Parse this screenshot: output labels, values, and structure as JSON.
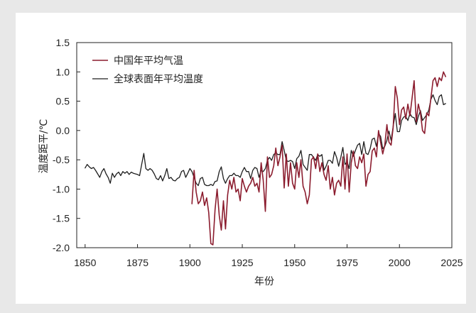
{
  "chart_data": {
    "type": "line",
    "xlabel": "年份",
    "ylabel": "温度距平/℃",
    "xlim": [
      1846,
      2025
    ],
    "ylim": [
      -2.0,
      1.5
    ],
    "x_ticks": [
      "1850",
      "1875",
      "1900",
      "1925",
      "1950",
      "1975",
      "2000",
      "2025"
    ],
    "y_ticks": [
      "1.5",
      "1.0",
      "0.5",
      "0.0",
      "-0.5",
      "-1.0",
      "-1.5",
      "-2.0"
    ],
    "grid": false,
    "legend": "top-left",
    "series": [
      {
        "name": "中国年平均气温",
        "color": "#8b1c2e",
        "x": [
          1901,
          1902,
          1903,
          1904,
          1905,
          1906,
          1907,
          1908,
          1909,
          1910,
          1911,
          1912,
          1913,
          1914,
          1915,
          1916,
          1917,
          1918,
          1919,
          1920,
          1921,
          1922,
          1923,
          1924,
          1925,
          1926,
          1927,
          1928,
          1929,
          1930,
          1931,
          1932,
          1933,
          1934,
          1935,
          1936,
          1937,
          1938,
          1939,
          1940,
          1941,
          1942,
          1943,
          1944,
          1945,
          1946,
          1947,
          1948,
          1949,
          1950,
          1951,
          1952,
          1953,
          1954,
          1955,
          1956,
          1957,
          1958,
          1959,
          1960,
          1961,
          1962,
          1963,
          1964,
          1965,
          1966,
          1967,
          1968,
          1969,
          1970,
          1971,
          1972,
          1973,
          1974,
          1975,
          1976,
          1977,
          1978,
          1979,
          1980,
          1981,
          1982,
          1983,
          1984,
          1985,
          1986,
          1987,
          1988,
          1989,
          1990,
          1991,
          1992,
          1993,
          1994,
          1995,
          1996,
          1997,
          1998,
          1999,
          2000,
          2001,
          2002,
          2003,
          2004,
          2005,
          2006,
          2007,
          2008,
          2009,
          2010,
          2011,
          2012,
          2013,
          2014,
          2015,
          2016,
          2017,
          2018,
          2019,
          2020,
          2021,
          2022
        ],
        "values": [
          -1.25,
          -0.68,
          -1.05,
          -1.25,
          -1.2,
          -1.05,
          -1.28,
          -1.15,
          -1.4,
          -1.93,
          -1.95,
          -1.35,
          -1.0,
          -1.45,
          -1.7,
          -1.2,
          -1.68,
          -1.1,
          -0.85,
          -1.0,
          -0.8,
          -1.05,
          -1.0,
          -1.2,
          -0.82,
          -0.95,
          -1.05,
          -0.95,
          -0.9,
          -0.8,
          -0.95,
          -0.9,
          -1.05,
          -0.55,
          -0.85,
          -1.38,
          -0.45,
          -0.8,
          -0.75,
          -0.6,
          -0.3,
          -0.6,
          -0.45,
          -0.25,
          -0.98,
          -0.4,
          -0.95,
          -0.55,
          -0.9,
          -1.0,
          -0.55,
          -0.8,
          -0.5,
          -0.95,
          -1.05,
          -1.25,
          -1.1,
          -0.5,
          -0.45,
          -0.65,
          -0.4,
          -0.7,
          -0.55,
          -0.75,
          -0.85,
          -0.6,
          -1.0,
          -0.8,
          -1.1,
          -0.9,
          -0.85,
          -0.95,
          -0.45,
          -1.0,
          -0.4,
          -1.05,
          -0.55,
          -0.35,
          -0.6,
          -0.65,
          -0.45,
          -0.55,
          -0.4,
          -0.95,
          -0.75,
          -0.7,
          -0.35,
          -0.3,
          -0.45,
          0.0,
          -0.2,
          -0.4,
          -0.25,
          0.1,
          -0.2,
          -0.25,
          0.05,
          0.75,
          0.55,
          0.1,
          0.35,
          0.4,
          0.2,
          0.45,
          0.25,
          0.55,
          0.85,
          0.15,
          0.45,
          0.3,
          0.0,
          -0.05,
          0.3,
          0.25,
          0.55,
          0.85,
          0.9,
          0.75,
          0.9,
          0.85,
          1.0,
          0.92
        ]
      },
      {
        "name": "全球表面年平均温度",
        "color": "#1e1e1e",
        "x": [
          1850,
          1851,
          1852,
          1853,
          1854,
          1855,
          1856,
          1857,
          1858,
          1859,
          1860,
          1861,
          1862,
          1863,
          1864,
          1865,
          1866,
          1867,
          1868,
          1869,
          1870,
          1871,
          1872,
          1873,
          1874,
          1875,
          1876,
          1877,
          1878,
          1879,
          1880,
          1881,
          1882,
          1883,
          1884,
          1885,
          1886,
          1887,
          1888,
          1889,
          1890,
          1891,
          1892,
          1893,
          1894,
          1895,
          1896,
          1897,
          1898,
          1899,
          1900,
          1901,
          1902,
          1903,
          1904,
          1905,
          1906,
          1907,
          1908,
          1909,
          1910,
          1911,
          1912,
          1913,
          1914,
          1915,
          1916,
          1917,
          1918,
          1919,
          1920,
          1921,
          1922,
          1923,
          1924,
          1925,
          1926,
          1927,
          1928,
          1929,
          1930,
          1931,
          1932,
          1933,
          1934,
          1935,
          1936,
          1937,
          1938,
          1939,
          1940,
          1941,
          1942,
          1943,
          1944,
          1945,
          1946,
          1947,
          1948,
          1949,
          1950,
          1951,
          1952,
          1953,
          1954,
          1955,
          1956,
          1957,
          1958,
          1959,
          1960,
          1961,
          1962,
          1963,
          1964,
          1965,
          1966,
          1967,
          1968,
          1969,
          1970,
          1971,
          1972,
          1973,
          1974,
          1975,
          1976,
          1977,
          1978,
          1979,
          1980,
          1981,
          1982,
          1983,
          1984,
          1985,
          1986,
          1987,
          1988,
          1989,
          1990,
          1991,
          1992,
          1993,
          1994,
          1995,
          1996,
          1997,
          1998,
          1999,
          2000,
          2001,
          2002,
          2003,
          2004,
          2005,
          2006,
          2007,
          2008,
          2009,
          2010,
          2011,
          2012,
          2013,
          2014,
          2015,
          2016,
          2017,
          2018,
          2019,
          2020,
          2021,
          2022
        ],
        "values": [
          -0.64,
          -0.58,
          -0.62,
          -0.65,
          -0.63,
          -0.68,
          -0.74,
          -0.8,
          -0.7,
          -0.65,
          -0.74,
          -0.8,
          -0.9,
          -0.73,
          -0.8,
          -0.74,
          -0.71,
          -0.77,
          -0.7,
          -0.73,
          -0.7,
          -0.75,
          -0.71,
          -0.73,
          -0.74,
          -0.75,
          -0.77,
          -0.58,
          -0.39,
          -0.65,
          -0.68,
          -0.65,
          -0.68,
          -0.74,
          -0.82,
          -0.84,
          -0.77,
          -0.86,
          -0.77,
          -0.65,
          -0.82,
          -0.8,
          -0.85,
          -0.86,
          -0.82,
          -0.8,
          -0.7,
          -0.68,
          -0.8,
          -0.73,
          -0.65,
          -0.7,
          -0.8,
          -0.9,
          -0.94,
          -0.82,
          -0.8,
          -0.92,
          -0.94,
          -0.94,
          -0.92,
          -0.94,
          -0.87,
          -0.86,
          -0.7,
          -0.62,
          -0.82,
          -0.9,
          -0.82,
          -0.77,
          -0.77,
          -0.73,
          -0.77,
          -0.77,
          -0.8,
          -0.7,
          -0.63,
          -0.7,
          -0.7,
          -0.82,
          -0.68,
          -0.63,
          -0.65,
          -0.8,
          -0.68,
          -0.7,
          -0.65,
          -0.51,
          -0.46,
          -0.51,
          -0.41,
          -0.38,
          -0.41,
          -0.41,
          -0.19,
          -0.34,
          -0.51,
          -0.53,
          -0.51,
          -0.53,
          -0.65,
          -0.48,
          -0.44,
          -0.34,
          -0.58,
          -0.63,
          -0.68,
          -0.41,
          -0.41,
          -0.46,
          -0.51,
          -0.41,
          -0.44,
          -0.41,
          -0.68,
          -0.61,
          -0.51,
          -0.51,
          -0.56,
          -0.36,
          -0.46,
          -0.61,
          -0.46,
          -0.29,
          -0.58,
          -0.53,
          -0.65,
          -0.34,
          -0.44,
          -0.34,
          -0.25,
          -0.22,
          -0.41,
          -0.19,
          -0.39,
          -0.41,
          -0.31,
          -0.15,
          -0.13,
          -0.27,
          -0.05,
          -0.1,
          -0.31,
          -0.27,
          -0.17,
          -0.01,
          -0.17,
          0.07,
          0.29,
          -0.02,
          -0.02,
          0.17,
          0.23,
          0.24,
          0.17,
          0.29,
          0.23,
          0.22,
          0.1,
          0.24,
          0.34,
          0.17,
          0.22,
          0.27,
          0.35,
          0.53,
          0.61,
          0.51,
          0.44,
          0.58,
          0.61,
          0.44,
          0.46
        ]
      }
    ]
  }
}
